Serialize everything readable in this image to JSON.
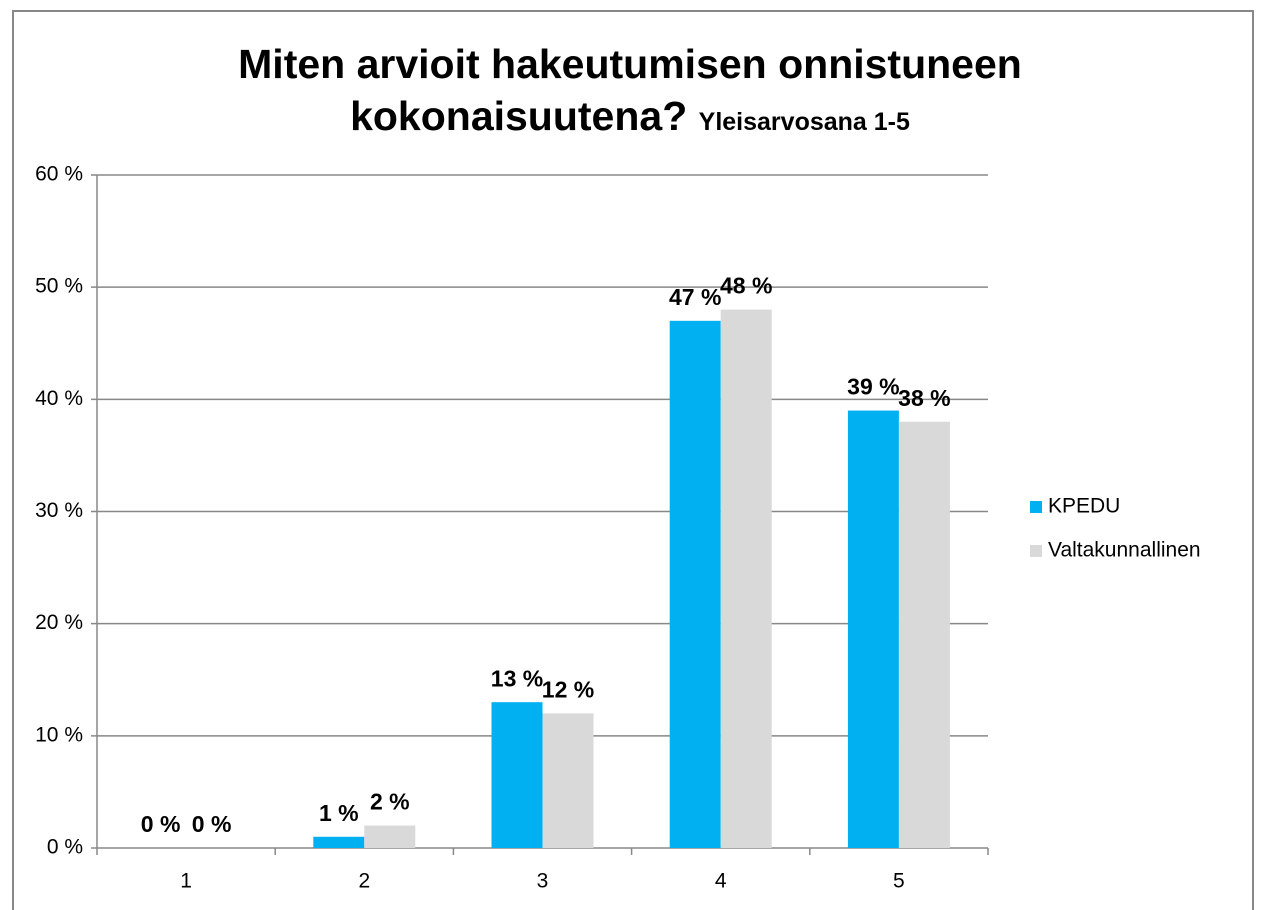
{
  "chart_data": {
    "type": "bar",
    "title": "Miten arvioit hakeutumisen onnistuneen kokonaisuutena?",
    "subtitle": "Yleisarvosana 1-5",
    "categories": [
      "1",
      "2",
      "3",
      "4",
      "5"
    ],
    "series": [
      {
        "name": "KPEDU",
        "color": "#00b0f0",
        "values": [
          0,
          1,
          13,
          47,
          39
        ],
        "value_labels": [
          "0 %",
          "1 %",
          "13 %",
          "47 %",
          "39 %"
        ]
      },
      {
        "name": "Valtakunnallinen",
        "color": "#d9d9d9",
        "values": [
          0,
          2,
          12,
          48,
          38
        ],
        "value_labels": [
          "0 %",
          "2 %",
          "12 %",
          "48 %",
          "38 %"
        ]
      }
    ],
    "ylim": [
      0,
      60
    ],
    "yticks": [
      {
        "value": 0,
        "label": "0 %"
      },
      {
        "value": 10,
        "label": "10 %"
      },
      {
        "value": 20,
        "label": "20 %"
      },
      {
        "value": 30,
        "label": "30 %"
      },
      {
        "value": 40,
        "label": "40 %"
      },
      {
        "value": 50,
        "label": "50 %"
      },
      {
        "value": 60,
        "label": "60 %"
      }
    ],
    "grid": true,
    "legend": "right"
  }
}
